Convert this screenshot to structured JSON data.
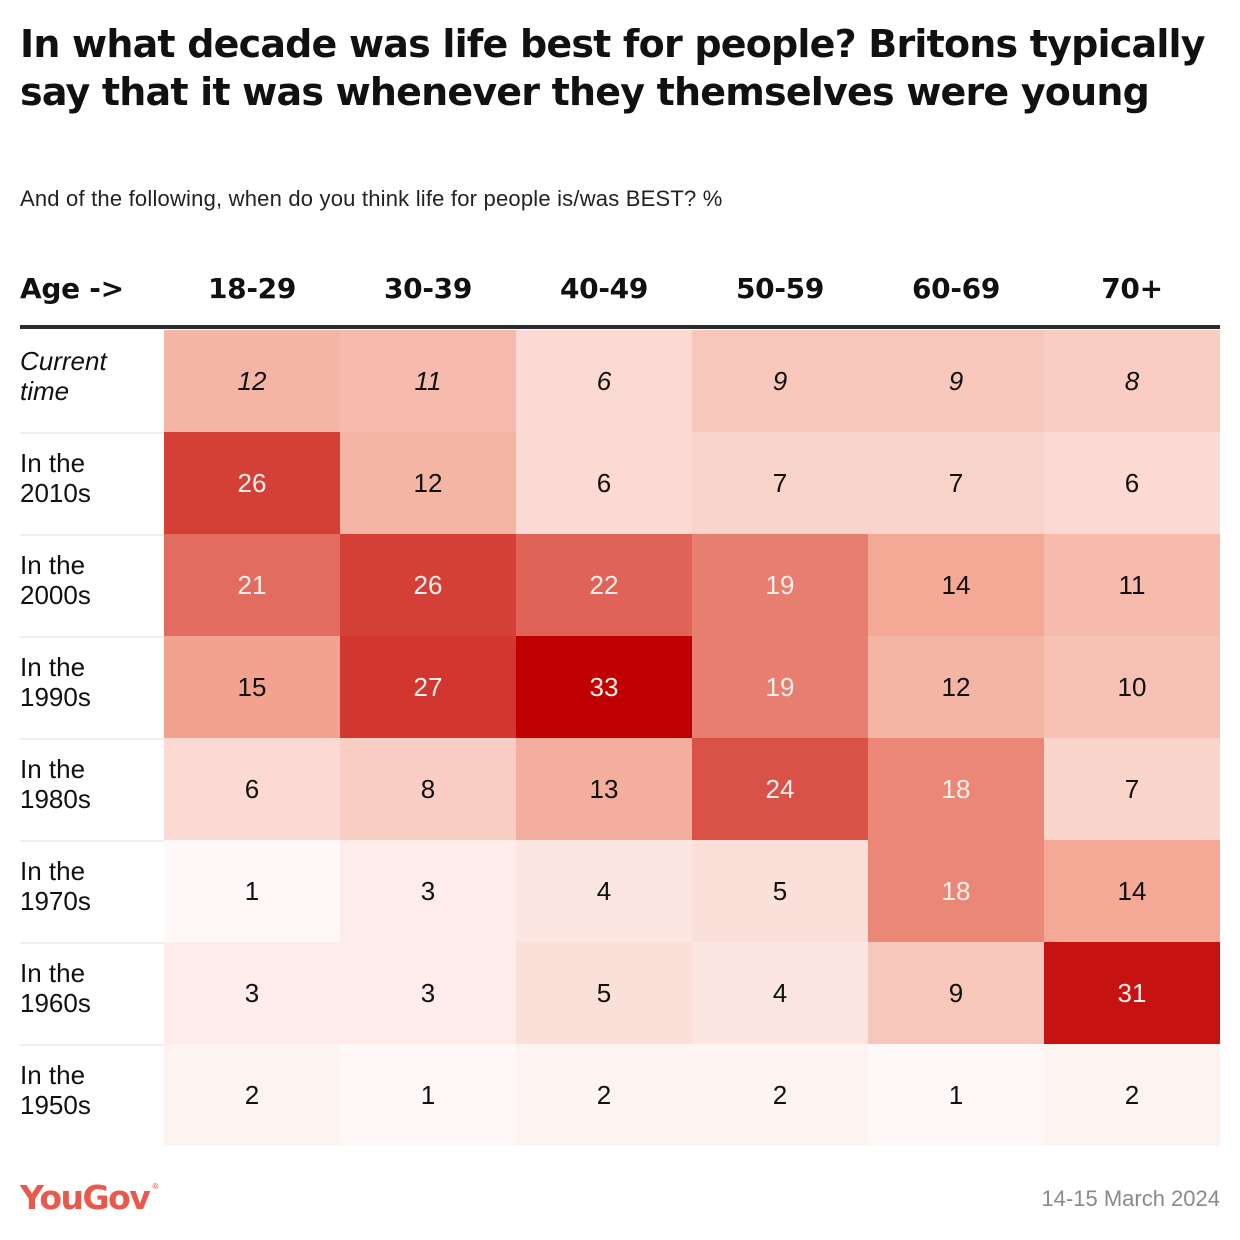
{
  "header": {
    "title": "In what decade was life best for people? Britons typically say that it was whenever they themselves were young",
    "subtitle": "And of the following, when do you think life for people is/was BEST? %"
  },
  "footer": {
    "logo": "YouGov",
    "logo_mark": "®",
    "logo_color": "#e8584b",
    "date": "14-15 March 2024"
  },
  "chart_data": {
    "type": "heatmap",
    "title": "In what decade was life best for people? Britons typically say that it was whenever they themselves were young",
    "subtitle": "And of the following, when do you think life for people is/was BEST? %",
    "corner_label": "Age ->",
    "columns": [
      "18-29",
      "30-39",
      "40-49",
      "50-59",
      "60-69",
      "70+"
    ],
    "rows": [
      {
        "label": "Current time",
        "italic": true,
        "values": [
          12,
          11,
          6,
          9,
          9,
          8
        ]
      },
      {
        "label": "In the 2010s",
        "italic": false,
        "values": [
          26,
          12,
          6,
          7,
          7,
          6
        ]
      },
      {
        "label": "In the 2000s",
        "italic": false,
        "values": [
          21,
          26,
          22,
          19,
          14,
          11
        ]
      },
      {
        "label": "In the 1990s",
        "italic": false,
        "values": [
          15,
          27,
          33,
          19,
          12,
          10
        ]
      },
      {
        "label": "In the 1980s",
        "italic": false,
        "values": [
          6,
          8,
          13,
          24,
          18,
          7
        ]
      },
      {
        "label": "In the 1970s",
        "italic": false,
        "values": [
          1,
          3,
          4,
          5,
          18,
          14
        ]
      },
      {
        "label": "In the 1960s",
        "italic": false,
        "values": [
          3,
          3,
          5,
          4,
          9,
          31
        ]
      },
      {
        "label": "In the 1950s",
        "italic": false,
        "values": [
          2,
          1,
          2,
          2,
          1,
          2
        ]
      }
    ],
    "value_range": [
      0,
      33
    ],
    "color_scale": {
      "low": "#ffffff",
      "mid": "#f3a390",
      "high": "#c00000"
    },
    "unit": "%",
    "source": "YouGov",
    "date": "14-15 March 2024"
  }
}
